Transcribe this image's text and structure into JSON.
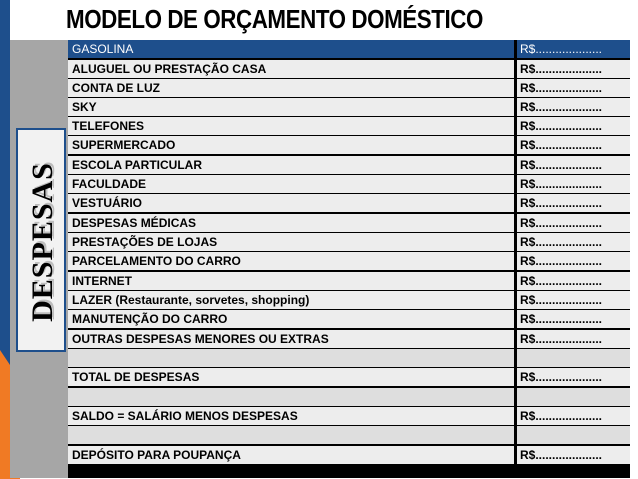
{
  "title": "MODELO DE ORÇAMENTO DOMÉSTICO",
  "side_label": "DESPESAS",
  "colors": {
    "header_blue": "#1e4f8c",
    "accent_orange": "#f07a24",
    "row_fill": "#ededed",
    "side_gray": "#a6a6a6"
  },
  "rows": [
    {
      "name": "GASOLINA",
      "value": "R$....................",
      "kind": "header"
    },
    {
      "name": "ALUGUEL OU PRESTAÇÃO CASA",
      "value": "R$....................",
      "kind": "item"
    },
    {
      "name": "CONTA DE LUZ",
      "value": "R$....................",
      "kind": "item"
    },
    {
      "name": "SKY",
      "value": "R$....................",
      "kind": "item"
    },
    {
      "name": "TELEFONES",
      "value": "R$....................",
      "kind": "item"
    },
    {
      "name": "SUPERMERCADO",
      "value": "R$....................",
      "kind": "item"
    },
    {
      "name": "ESCOLA PARTICULAR",
      "value": "R$....................",
      "kind": "item"
    },
    {
      "name": "FACULDADE",
      "value": "R$....................",
      "kind": "item"
    },
    {
      "name": "VESTUÁRIO",
      "value": "R$....................",
      "kind": "item"
    },
    {
      "name": "DESPESAS MÉDICAS",
      "value": "R$....................",
      "kind": "item"
    },
    {
      "name": "PRESTAÇÕES DE LOJAS",
      "value": "R$....................",
      "kind": "item"
    },
    {
      "name": "PARCELAMENTO DO CARRO",
      "value": "R$....................",
      "kind": "item"
    },
    {
      "name": "INTERNET",
      "value": "R$....................",
      "kind": "item"
    },
    {
      "name": "LAZER (Restaurante, sorvetes, shopping)",
      "value": "R$....................",
      "kind": "item"
    },
    {
      "name": "MANUTENÇÃO DO CARRO",
      "value": "R$....................",
      "kind": "item"
    },
    {
      "name": "OUTRAS DESPESAS MENORES OU EXTRAS",
      "value": "R$....................",
      "kind": "item"
    },
    {
      "name": "",
      "value": "",
      "kind": "blank"
    },
    {
      "name": "TOTAL DE DESPESAS",
      "value": "R$....................",
      "kind": "item"
    },
    {
      "name": "",
      "value": "",
      "kind": "blank"
    },
    {
      "name": "SALDO = SALÁRIO MENOS DESPESAS",
      "value": "R$....................",
      "kind": "item"
    },
    {
      "name": "",
      "value": "",
      "kind": "blank"
    },
    {
      "name": "DEPÓSITO PARA POUPANÇA",
      "value": "R$....................",
      "kind": "item"
    }
  ]
}
